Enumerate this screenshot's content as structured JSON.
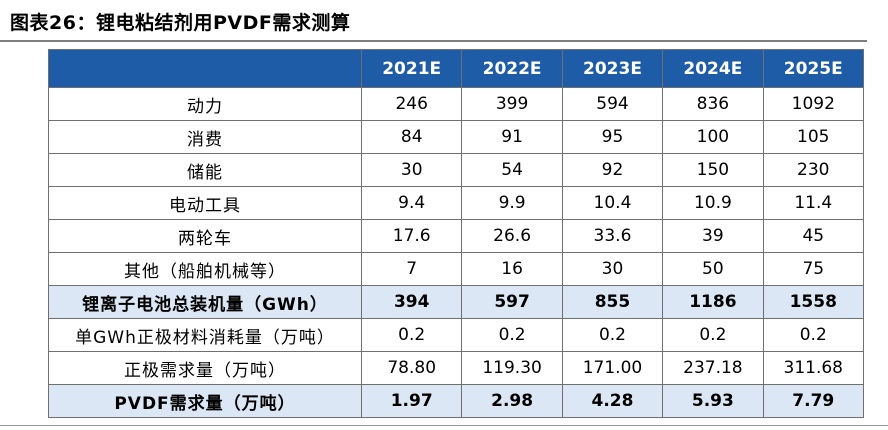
{
  "title": "图表26：锂电粘结剂用PVDF需求测算",
  "table": {
    "columns": [
      "2021E",
      "2022E",
      "2023E",
      "2024E",
      "2025E"
    ],
    "rows": [
      {
        "label": "动力",
        "values": [
          "246",
          "399",
          "594",
          "836",
          "1092"
        ],
        "summary": false
      },
      {
        "label": "消费",
        "values": [
          "84",
          "91",
          "95",
          "100",
          "105"
        ],
        "summary": false
      },
      {
        "label": "储能",
        "values": [
          "30",
          "54",
          "92",
          "150",
          "230"
        ],
        "summary": false
      },
      {
        "label": "电动工具",
        "values": [
          "9.4",
          "9.9",
          "10.4",
          "10.9",
          "11.4"
        ],
        "summary": false
      },
      {
        "label": "两轮车",
        "values": [
          "17.6",
          "26.6",
          "33.6",
          "39",
          "45"
        ],
        "summary": false
      },
      {
        "label": "其他（船舶机械等）",
        "values": [
          "7",
          "16",
          "30",
          "50",
          "75"
        ],
        "summary": false
      },
      {
        "label": "锂离子电池总装机量（GWh）",
        "values": [
          "394",
          "597",
          "855",
          "1186",
          "1558"
        ],
        "summary": true
      },
      {
        "label": "单GWh正极材料消耗量（万吨）",
        "values": [
          "0.2",
          "0.2",
          "0.2",
          "0.2",
          "0.2"
        ],
        "summary": false
      },
      {
        "label": "正极需求量（万吨）",
        "values": [
          "78.80",
          "119.30",
          "171.00",
          "237.18",
          "311.68"
        ],
        "summary": false
      },
      {
        "label": "PVDF需求量（万吨）",
        "values": [
          "1.97",
          "2.98",
          "4.28",
          "5.93",
          "7.79"
        ],
        "summary": true
      }
    ]
  },
  "colors": {
    "header_bg": "#1f5ca8",
    "header_text": "#ffffff",
    "summary_bg": "#dce7f5",
    "border": "#6f6f6f"
  }
}
